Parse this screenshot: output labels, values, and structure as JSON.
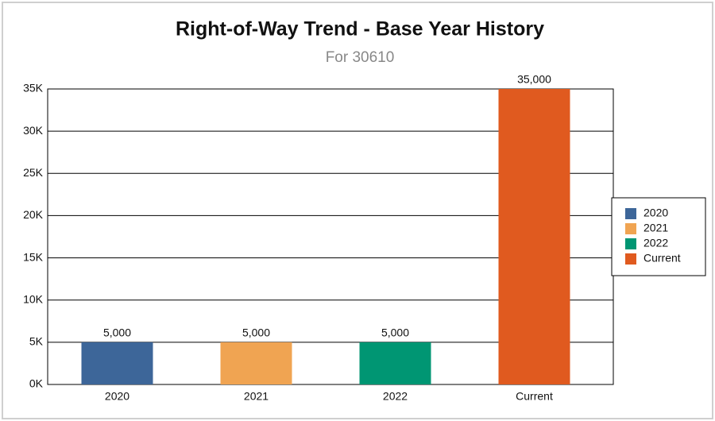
{
  "chart_data": {
    "type": "bar",
    "title": "Right-of-Way Trend - Base Year History",
    "subtitle": "For 30610",
    "categories": [
      "2020",
      "2021",
      "2022",
      "Current"
    ],
    "values": [
      5000,
      5000,
      5000,
      35000
    ],
    "value_labels": [
      "5,000",
      "5,000",
      "5,000",
      "35,000"
    ],
    "colors": [
      "#3d6699",
      "#f0a452",
      "#009673",
      "#e05a1f"
    ],
    "ylim": [
      0,
      35000
    ],
    "yticks": [
      {
        "value": 0,
        "label": "0K"
      },
      {
        "value": 5000,
        "label": "5K"
      },
      {
        "value": 10000,
        "label": "10K"
      },
      {
        "value": 15000,
        "label": "15K"
      },
      {
        "value": 20000,
        "label": "20K"
      },
      {
        "value": 25000,
        "label": "25K"
      },
      {
        "value": 30000,
        "label": "30K"
      },
      {
        "value": 35000,
        "label": "35K"
      }
    ],
    "grid": true,
    "legend": "right"
  }
}
